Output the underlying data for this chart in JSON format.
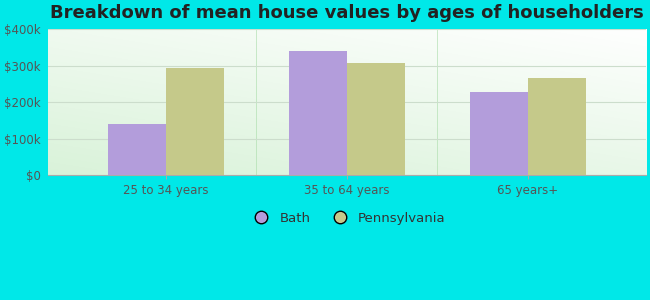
{
  "title": "Breakdown of mean house values by ages of householders",
  "categories": [
    "25 to 34 years",
    "35 to 64 years",
    "65 years+"
  ],
  "bath_values": [
    140000,
    340000,
    228000
  ],
  "pa_values": [
    295000,
    308000,
    268000
  ],
  "bath_color": "#b39ddb",
  "pa_color": "#c5c98a",
  "background_outer": "#00e8e8",
  "plot_bg_top": "#f0f8f0",
  "plot_bg_bottom": "#c8efd0",
  "ylim": [
    0,
    400000
  ],
  "yticks": [
    0,
    100000,
    200000,
    300000,
    400000
  ],
  "ytick_labels": [
    "$0",
    "$100k",
    "$200k",
    "$300k",
    "$400k"
  ],
  "bar_width": 0.32,
  "legend_labels": [
    "Bath",
    "Pennsylvania"
  ],
  "title_fontsize": 13,
  "grid_color": "#ddeecc"
}
